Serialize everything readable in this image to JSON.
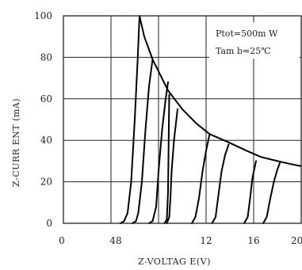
{
  "chart_data": {
    "type": "line",
    "title": "",
    "xlabel": "Z-VOLTAG E(V)",
    "ylabel": "Z-CURR ENT (mA)",
    "xlim": [
      0,
      20
    ],
    "ylim": [
      0,
      100
    ],
    "x_ticks": [
      "0",
      "48",
      "12",
      "16",
      "20"
    ],
    "y_ticks": [
      "0",
      "20",
      "40",
      "60",
      "80",
      "100"
    ],
    "grid": true,
    "annotation_lines": [
      "Ptot=500m W",
      "Tam b=25℃"
    ],
    "series": [
      {
        "points": [
          [
            4.8,
            0
          ],
          [
            5.1,
            1
          ],
          [
            5.4,
            5
          ],
          [
            5.7,
            20
          ],
          [
            6.0,
            50
          ],
          [
            6.25,
            80
          ],
          [
            6.4,
            100
          ]
        ]
      },
      {
        "points": [
          [
            5.8,
            0
          ],
          [
            6.1,
            1
          ],
          [
            6.3,
            5
          ],
          [
            6.6,
            20
          ],
          [
            6.9,
            45
          ],
          [
            7.2,
            66
          ],
          [
            7.5,
            79
          ]
        ]
      },
      {
        "points": [
          [
            7.2,
            0
          ],
          [
            7.5,
            1
          ],
          [
            7.8,
            8
          ],
          [
            8.0,
            25
          ],
          [
            8.3,
            45
          ],
          [
            8.6,
            60
          ],
          [
            8.8,
            68
          ]
        ]
      },
      {
        "points": [
          [
            8.5,
            0
          ],
          [
            8.7,
            2
          ],
          [
            8.8,
            15
          ],
          [
            8.85,
            40
          ],
          [
            8.9,
            62
          ]
        ]
      },
      {
        "points": [
          [
            8.7,
            0
          ],
          [
            8.9,
            3
          ],
          [
            9.0,
            12
          ],
          [
            9.1,
            25
          ],
          [
            9.3,
            40
          ],
          [
            9.6,
            55
          ]
        ]
      },
      {
        "points": [
          [
            10.8,
            0
          ],
          [
            11.1,
            3
          ],
          [
            11.4,
            12
          ],
          [
            11.7,
            25
          ],
          [
            12.0,
            35
          ],
          [
            12.3,
            43
          ]
        ]
      },
      {
        "points": [
          [
            12.5,
            0
          ],
          [
            12.8,
            3
          ],
          [
            13.0,
            12
          ],
          [
            13.3,
            25
          ],
          [
            13.6,
            33
          ],
          [
            13.9,
            38
          ]
        ]
      },
      {
        "points": [
          [
            15.2,
            0
          ],
          [
            15.5,
            3
          ],
          [
            15.7,
            12
          ],
          [
            15.9,
            22
          ],
          [
            16.2,
            30
          ]
        ]
      },
      {
        "points": [
          [
            16.8,
            0
          ],
          [
            17.1,
            3
          ],
          [
            17.4,
            12
          ],
          [
            17.7,
            20
          ],
          [
            18.0,
            26
          ],
          [
            18.2,
            29
          ]
        ]
      }
    ],
    "limit_curve": [
      [
        6.4,
        100
      ],
      [
        6.8,
        90
      ],
      [
        7.5,
        79
      ],
      [
        8.8,
        64
      ],
      [
        10.0,
        55
      ],
      [
        11.2,
        48
      ],
      [
        12.3,
        43
      ],
      [
        13.9,
        39
      ],
      [
        15.4,
        35
      ],
      [
        16.6,
        32
      ],
      [
        18.0,
        30
      ],
      [
        19.0,
        28.7
      ],
      [
        20.0,
        27.5
      ]
    ]
  }
}
